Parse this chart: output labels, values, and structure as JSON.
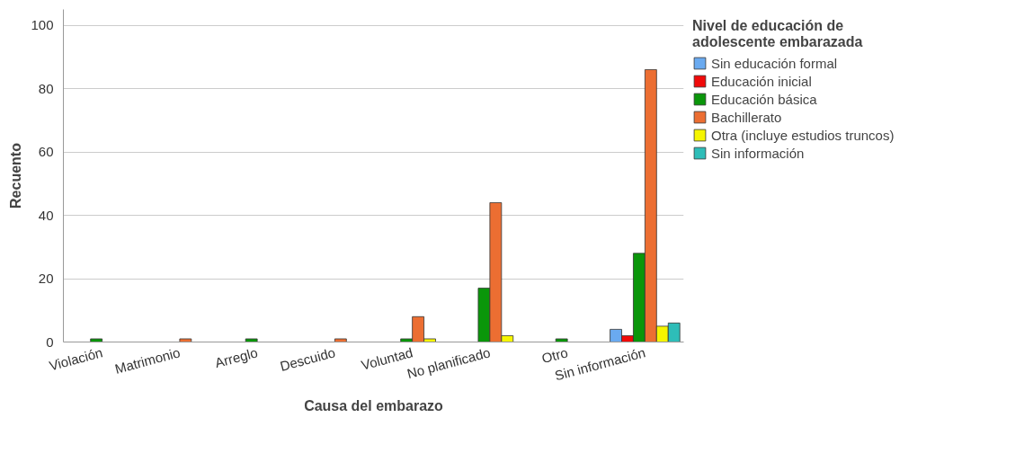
{
  "chart_data": {
    "type": "bar",
    "xlabel": "Causa del embarazo",
    "ylabel": "Recuento",
    "legend_title": "Nivel de educación de adolescente embarazada",
    "categories": [
      "Violación",
      "Matrimonio",
      "Arreglo",
      "Descuido",
      "Voluntad",
      "No planificado",
      "Otro",
      "Sin información"
    ],
    "series": [
      {
        "name": "Sin educación formal",
        "color": "#6aaaf0",
        "values": [
          null,
          null,
          null,
          null,
          null,
          null,
          null,
          4
        ]
      },
      {
        "name": "Educación inicial",
        "color": "#f00a0a",
        "values": [
          null,
          null,
          null,
          null,
          null,
          null,
          null,
          2
        ]
      },
      {
        "name": "Educación básica",
        "color": "#0a960a",
        "values": [
          1,
          null,
          1,
          null,
          1,
          17,
          1,
          28
        ]
      },
      {
        "name": "Bachillerato",
        "color": "#ec6e32",
        "values": [
          null,
          1,
          null,
          1,
          8,
          44,
          null,
          86
        ]
      },
      {
        "name": "Otra (incluye estudios truncos)",
        "color": "#f5f500",
        "values": [
          null,
          null,
          null,
          null,
          1,
          2,
          null,
          5
        ]
      },
      {
        "name": "Sin información",
        "color": "#2ebdb8",
        "values": [
          null,
          null,
          null,
          null,
          null,
          null,
          null,
          6
        ]
      }
    ],
    "ylim": [
      0,
      105
    ],
    "yticks": [
      0,
      20,
      40,
      60,
      80,
      100
    ],
    "grid": "y",
    "legend": "top right"
  }
}
